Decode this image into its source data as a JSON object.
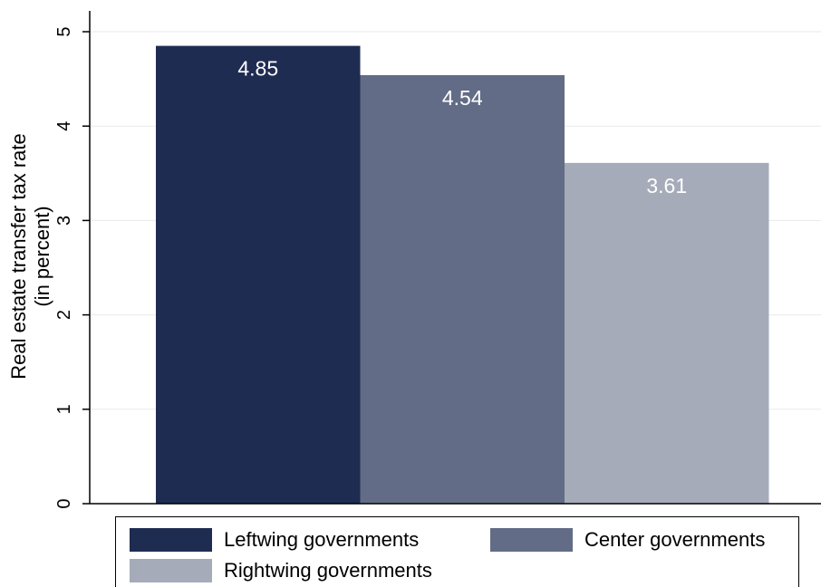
{
  "chart_data": {
    "type": "bar",
    "title": "",
    "xlabel": "",
    "ylabel": "Real estate transfer tax rate",
    "ylabel_sub": "(in percent)",
    "ylim": [
      0,
      5
    ],
    "yticks": [
      "0",
      "1",
      "2",
      "3",
      "4",
      "5"
    ],
    "grid": true,
    "legend_position": "bottom",
    "series": [
      {
        "name": "Leftwing governments",
        "value": 4.85,
        "label": "4.85",
        "color": "#1f2c52"
      },
      {
        "name": "Center governments",
        "value": 4.54,
        "label": "4.54",
        "color": "#626c86"
      },
      {
        "name": "Rightwing governments",
        "value": 3.61,
        "label": "3.61",
        "color": "#a6abba"
      }
    ]
  }
}
